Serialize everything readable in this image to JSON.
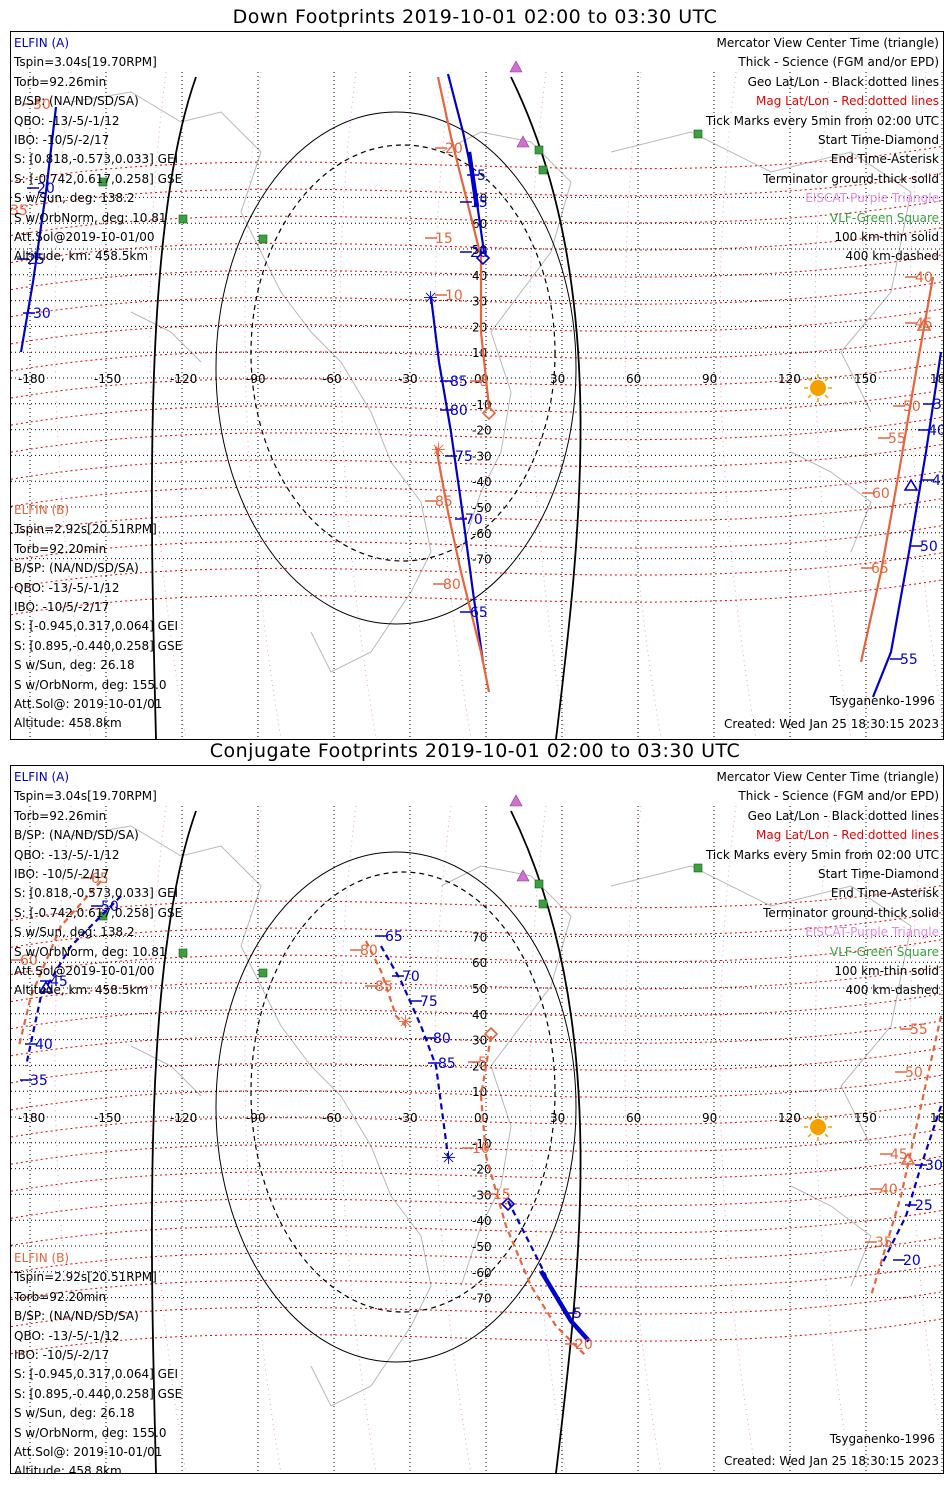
{
  "panels": [
    {
      "title": "Down Footprints 2019-10-01 02:00 to 03:30 UTC",
      "elfin_a": {
        "header": "ELFIN (A)",
        "lines": [
          "Tspin=3.04s[19.70RPM]",
          "Torb=92.26min",
          "B/SP: (NA/ND/SD/SA)",
          "QBO: -13/-5/-1/12",
          "IBO: -10/5/-2/17",
          "S: [0.818,-0.573,0.033] GEI",
          "S: [-0.742,0.617,0.258] GSE",
          "S w/Sun, deg: 138.2",
          "S w/OrbNorm, deg: 10.81",
          "Att.Sol@2019-10-01/00",
          "Altitude, km: 458.5km"
        ]
      },
      "elfin_b": {
        "header": "ELFIN (B)",
        "lines": [
          "Tspin=2.92s[20.51RPM]",
          "Torb=92.20min",
          "B/SP: (NA/ND/SD/SA)",
          "QBO: -13/-5/-1/12",
          "IBO: -10/5/-2/17",
          "S: [-0.945,0.317,0.064] GEI",
          "S: [0.895,-0.440,0.258] GSE",
          "S w/Sun, deg: 26.18",
          "S w/OrbNorm, deg: 155.0",
          "Att.Sol@: 2019-10-01/01",
          "Altitude: 458.8km"
        ]
      },
      "legend": {
        "mercator": "Mercator View Center Time (triangle)",
        "thick": "Thick - Science (FGM and/or EPD)",
        "geo": "Geo Lat/Lon - Black dotted lines",
        "mag": "Mag Lat/Lon - Red dotted lines",
        "ticks": "Tick Marks every 5min from 02:00 UTC",
        "start": "Start Time-Diamond",
        "end": "End Time-Asterisk",
        "terminator": "Terminator ground-thick solid",
        "eiscat": "EISCAT-Purple Triangle",
        "vlf": "VLF-Green Square",
        "km100": "100 km-thin solid",
        "km400": "400 km-dashed"
      },
      "model": "Tsyganenko-1996",
      "created": "Created: Wed Jan 25 18:30:15 2023",
      "track_a_labels": [
        "20",
        "25",
        "30",
        "5",
        "15",
        "20",
        "85",
        "80",
        "75",
        "70",
        "65",
        "35",
        "40",
        "45",
        "50",
        "55"
      ],
      "track_b_labels": [
        "30",
        "35",
        "40",
        "45",
        "50",
        "55",
        "60",
        "65",
        "15",
        "10",
        "5",
        "85",
        "80",
        "20"
      ]
    },
    {
      "title": "Conjugate Footprints 2019-10-01 02:00 to 03:30 UTC",
      "elfin_a": {
        "header": "ELFIN (A)",
        "lines": [
          "Tspin=3.04s[19.70RPM]",
          "Torb=92.26min",
          "B/SP: (NA/ND/SD/SA)",
          "QBO: -13/-5/-1/12",
          "IBO: -10/5/-2/17",
          "S: [0.818,-0.573,0.033] GEI",
          "S: [-0.742,0.617,0.258] GSE",
          "S w/Sun, deg: 138.2",
          "S w/OrbNorm, deg: 10.81",
          "Att.Sol@2019-10-01/00",
          "Altitude, km: 458.5km"
        ]
      },
      "elfin_b": {
        "header": "ELFIN (B)",
        "lines": [
          "Tspin=2.92s[20.51RPM]",
          "Torb=92.20min",
          "B/SP: (NA/ND/SD/SA)",
          "QBO: -13/-5/-1/12",
          "IBO: -10/5/-2/17",
          "S: [-0.945,0.317,0.064] GEI",
          "S: [0.895,-0.440,0.258] GSE",
          "S w/Sun, deg: 26.18",
          "S w/OrbNorm, deg: 155.0",
          "Att.Sol@: 2019-10-01/01",
          "Altitude: 458.8km"
        ]
      },
      "legend": {
        "mercator": "Mercator View Center Time (triangle)",
        "thick": "Thick - Science (FGM and/or EPD)",
        "geo": "Geo Lat/Lon - Black dotted lines",
        "mag": "Mag Lat/Lon - Red dotted lines",
        "ticks": "Tick Marks every 5min from 02:00 UTC",
        "start": "Start Time-Diamond",
        "end": "End Time-Asterisk",
        "terminator": "Terminator ground-thick solid",
        "eiscat": "EISCAT-Purple Triangle",
        "vlf": "VLF-Green Square",
        "km100": "100 km-thin solid",
        "km400": "400 km-dashed"
      },
      "model": "Tsyganenko-1996",
      "created": "Created: Wed Jan 25 18:30:15 2023",
      "track_a_labels": [
        "65",
        "70",
        "75",
        "80",
        "85",
        "5",
        "30",
        "25",
        "20",
        "35",
        "40",
        "45",
        "50"
      ],
      "track_b_labels": [
        "65",
        "80",
        "85",
        "5",
        "10",
        "15",
        "20",
        "55",
        "50",
        "45",
        "40",
        "35",
        "60"
      ]
    }
  ],
  "lon_ticks": [
    "-180",
    "-150",
    "-120",
    "-90",
    "-60",
    "-30",
    "0",
    "30",
    "60",
    "90",
    "120",
    "150",
    "180"
  ],
  "lat_ticks": [
    "70",
    "60",
    "50",
    "40",
    "30",
    "20",
    "10",
    "0",
    "-10",
    "-20",
    "-30",
    "-40",
    "-50",
    "-60",
    "-70"
  ],
  "colors": {
    "elfin_a": "#0000cc",
    "elfin_b": "#e8643c",
    "mag_grid": "#e80000",
    "geo_grid": "#000000",
    "eiscat": "#d070d0",
    "vlf": "#3aa040",
    "coast": "#b8b8b8",
    "sun": "#f5a000"
  }
}
